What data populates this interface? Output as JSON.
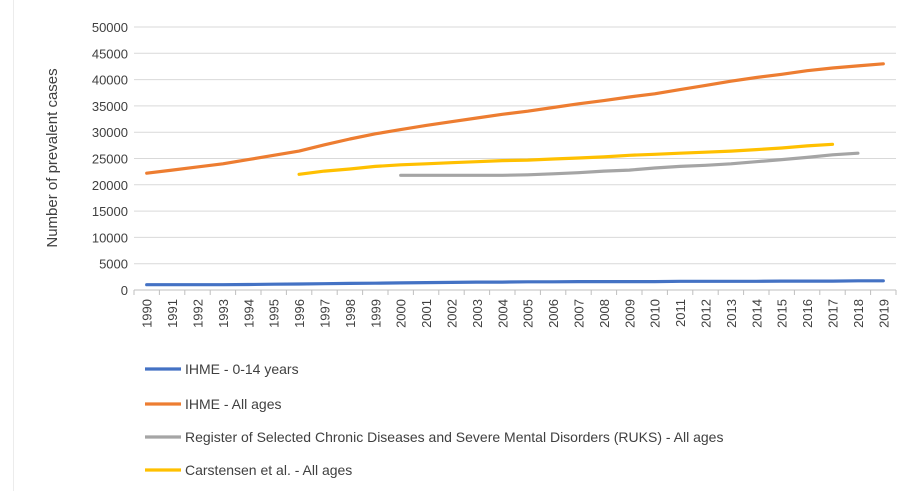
{
  "chart_data": {
    "type": "line",
    "title": "",
    "xlabel": "",
    "ylabel": "Number of prevalent cases",
    "ylim": [
      0,
      50000
    ],
    "yticks": [
      0,
      5000,
      10000,
      15000,
      20000,
      25000,
      30000,
      35000,
      40000,
      45000,
      50000
    ],
    "grid": true,
    "legend_position": "bottom",
    "x": [
      "1990",
      "1991",
      "1992",
      "1993",
      "1994",
      "1995",
      "1996",
      "1997",
      "1998",
      "1999",
      "2000",
      "2001",
      "2002",
      "2003",
      "2004",
      "2005",
      "2006",
      "2007",
      "2008",
      "2009",
      "2010",
      "2011",
      "2012",
      "2013",
      "2014",
      "2015",
      "2016",
      "2017",
      "2018",
      "2019"
    ],
    "series": [
      {
        "name": "IHME - 0-14 years",
        "color": "#4472C4",
        "values": [
          1000,
          1000,
          1000,
          1000,
          1050,
          1100,
          1150,
          1200,
          1250,
          1300,
          1350,
          1400,
          1450,
          1500,
          1500,
          1550,
          1550,
          1600,
          1600,
          1600,
          1600,
          1650,
          1650,
          1650,
          1650,
          1700,
          1700,
          1700,
          1750,
          1750
        ]
      },
      {
        "name": "IHME - All ages",
        "color": "#ED7D31",
        "values": [
          22200,
          22800,
          23400,
          24000,
          24800,
          25600,
          26400,
          27600,
          28700,
          29700,
          30500,
          31300,
          32000,
          32700,
          33400,
          34000,
          34700,
          35400,
          36000,
          36700,
          37300,
          38100,
          38900,
          39700,
          40400,
          41000,
          41700,
          42200,
          42600,
          43000
        ]
      },
      {
        "name": "Register of Selected Chronic Diseases and Severe Mental Disorders (RUKS)  - All ages",
        "color": "#A5A5A5",
        "values": [
          null,
          null,
          null,
          null,
          null,
          null,
          null,
          null,
          null,
          null,
          21800,
          21800,
          21800,
          21800,
          21800,
          21900,
          22100,
          22300,
          22600,
          22800,
          23200,
          23500,
          23700,
          24000,
          24400,
          24800,
          25200,
          25700,
          26000,
          null
        ]
      },
      {
        "name": "Carstensen et al. - All ages",
        "color": "#FFC000",
        "values": [
          null,
          null,
          null,
          null,
          null,
          null,
          22000,
          22600,
          23000,
          23500,
          23800,
          24000,
          24200,
          24400,
          24600,
          24700,
          24900,
          25100,
          25300,
          25600,
          25800,
          26000,
          26200,
          26400,
          26700,
          27000,
          27400,
          27700,
          null,
          null
        ]
      }
    ]
  }
}
